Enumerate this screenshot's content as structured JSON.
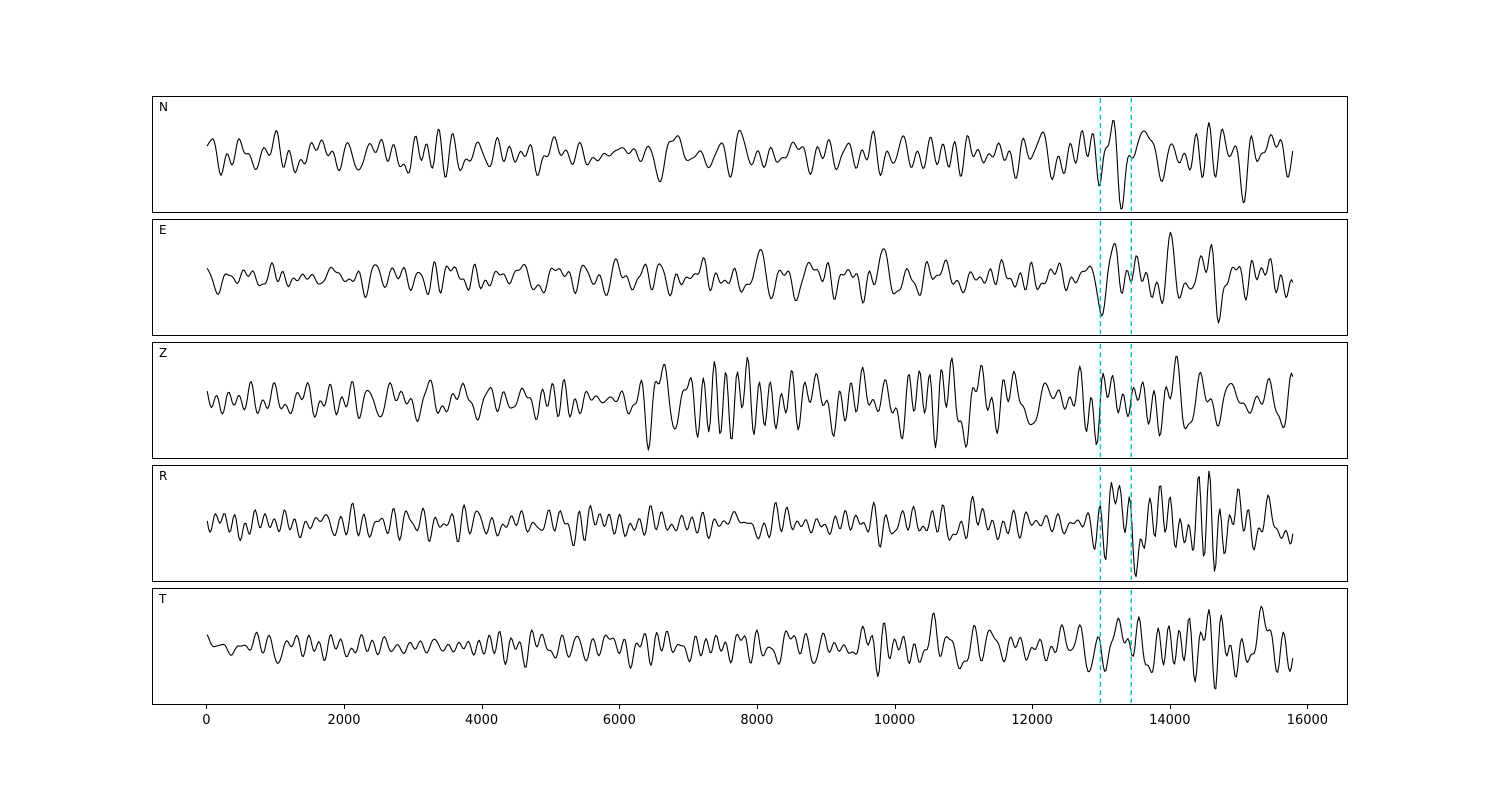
{
  "figure": {
    "background": "#ffffff",
    "axis_color": "#000000"
  },
  "chart_data": {
    "type": "line",
    "title": "",
    "xlabel": "",
    "ylabel": "",
    "grid": false,
    "legend": "none",
    "x_range_data": [
      0,
      15800
    ],
    "xlim": [
      -790,
      16590
    ],
    "x_ticks": [
      0,
      2000,
      4000,
      6000,
      8000,
      10000,
      12000,
      14000,
      16000
    ],
    "channels": [
      "N",
      "E",
      "Z",
      "R",
      "T"
    ],
    "trace_color": "#000000",
    "vertical_markers": {
      "positions": [
        13000,
        13450
      ],
      "color": "#00bfbf",
      "line_style": "dashed"
    },
    "series": [
      {
        "name": "N",
        "amplitude_envelope": [
          [
            0,
            0.62
          ],
          [
            4000,
            0.68
          ],
          [
            8000,
            0.75
          ],
          [
            12700,
            0.75
          ],
          [
            13050,
            1.35
          ],
          [
            13500,
            1.05
          ],
          [
            14500,
            0.95
          ],
          [
            15200,
            1.4
          ],
          [
            15800,
            0.85
          ]
        ]
      },
      {
        "name": "E",
        "amplitude_envelope": [
          [
            0,
            0.45
          ],
          [
            5000,
            0.5
          ],
          [
            8000,
            0.6
          ],
          [
            12800,
            0.62
          ],
          [
            13250,
            1.6
          ],
          [
            13800,
            1.0
          ],
          [
            14800,
            1.15
          ],
          [
            15800,
            0.8
          ]
        ]
      },
      {
        "name": "Z",
        "amplitude_envelope": [
          [
            0,
            0.55
          ],
          [
            5800,
            0.6
          ],
          [
            6300,
            1.45
          ],
          [
            7600,
            1.25
          ],
          [
            9000,
            1.05
          ],
          [
            10500,
            1.15
          ],
          [
            12500,
            1.0
          ],
          [
            13500,
            0.95
          ],
          [
            15800,
            0.9
          ]
        ]
      },
      {
        "name": "R",
        "amplitude_envelope": [
          [
            0,
            0.42
          ],
          [
            6000,
            0.5
          ],
          [
            9000,
            0.55
          ],
          [
            12850,
            0.6
          ],
          [
            13150,
            1.6
          ],
          [
            13700,
            0.95
          ],
          [
            14650,
            1.45
          ],
          [
            15300,
            1.0
          ],
          [
            15800,
            0.8
          ]
        ]
      },
      {
        "name": "T",
        "amplitude_envelope": [
          [
            0,
            0.55
          ],
          [
            4000,
            0.65
          ],
          [
            9000,
            0.7
          ],
          [
            12900,
            0.72
          ],
          [
            13150,
            1.3
          ],
          [
            14000,
            0.95
          ],
          [
            15300,
            1.45
          ],
          [
            15800,
            0.8
          ]
        ]
      }
    ]
  }
}
